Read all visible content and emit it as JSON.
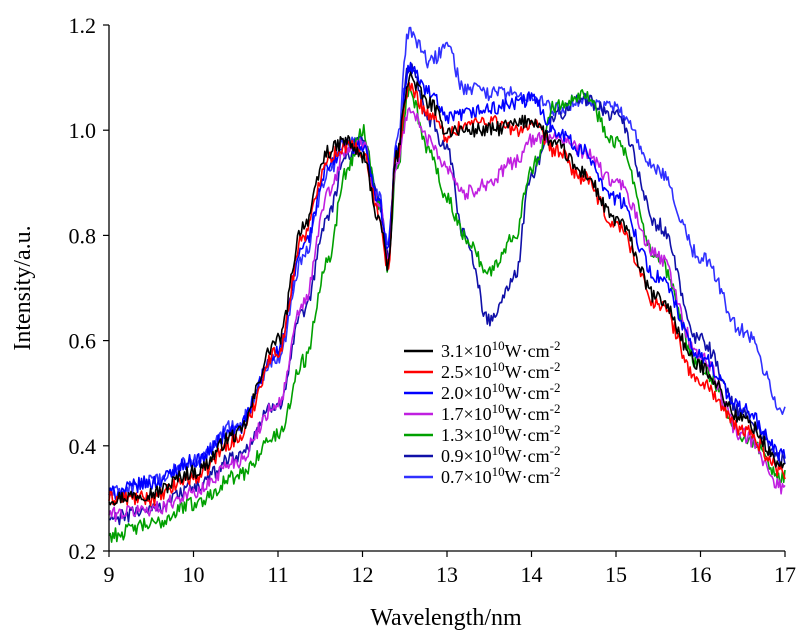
{
  "chart_data": {
    "type": "line",
    "title": "",
    "xlabel": "Wavelength/nm",
    "ylabel": "Intensity/a.u.",
    "xlim": [
      9,
      17
    ],
    "ylim": [
      0.2,
      1.2
    ],
    "x_ticks": [
      "9",
      "10",
      "11",
      "12",
      "13",
      "14",
      "15",
      "16",
      "17"
    ],
    "y_ticks": [
      "0.2",
      "0.4",
      "0.6",
      "0.8",
      "1.0",
      "1.2"
    ],
    "grid": false,
    "legend_position": "lower-center",
    "series": [
      {
        "name": "3.1×10¹⁰W·cm⁻²",
        "mantissa": "3.1",
        "exponent": "10",
        "unit_base": "W·cm",
        "unit_exponent": "-2",
        "color": "#000000",
        "x": [
          9.0,
          9.5,
          10.0,
          10.5,
          11.0,
          11.3,
          11.6,
          11.8,
          12.0,
          12.2,
          12.3,
          12.4,
          12.55,
          12.8,
          13.0,
          13.2,
          13.5,
          13.8,
          14.0,
          14.3,
          14.6,
          15.0,
          15.5,
          16.0,
          16.5,
          17.0
        ],
        "y": [
          0.3,
          0.31,
          0.35,
          0.42,
          0.6,
          0.82,
          0.96,
          0.98,
          0.95,
          0.83,
          0.74,
          0.95,
          1.1,
          1.05,
          1.0,
          1.0,
          1.0,
          1.01,
          1.02,
          0.97,
          0.92,
          0.83,
          0.68,
          0.55,
          0.45,
          0.36
        ]
      },
      {
        "name": "2.5×10¹⁰W·cm⁻²",
        "mantissa": "2.5",
        "exponent": "10",
        "unit_base": "W·cm",
        "unit_exponent": "-2",
        "color": "#ff0000",
        "x": [
          9.0,
          9.5,
          10.0,
          10.5,
          11.0,
          11.3,
          11.6,
          11.8,
          12.0,
          12.2,
          12.3,
          12.4,
          12.55,
          12.8,
          13.0,
          13.2,
          13.5,
          13.8,
          14.0,
          14.3,
          14.6,
          15.0,
          15.5,
          16.0,
          16.5,
          17.0
        ],
        "y": [
          0.3,
          0.3,
          0.34,
          0.41,
          0.58,
          0.8,
          0.95,
          0.97,
          0.96,
          0.84,
          0.74,
          0.95,
          1.08,
          1.03,
          0.99,
          1.01,
          1.02,
          1.0,
          1.01,
          0.96,
          0.91,
          0.82,
          0.67,
          0.52,
          0.43,
          0.35
        ]
      },
      {
        "name": "2.0×10¹⁰W·cm⁻²",
        "mantissa": "2.0",
        "exponent": "10",
        "unit_base": "W·cm",
        "unit_exponent": "-2",
        "color": "#0000ff",
        "x": [
          9.0,
          9.5,
          10.0,
          10.5,
          11.0,
          11.3,
          11.6,
          11.8,
          12.0,
          12.2,
          12.3,
          12.4,
          12.55,
          12.8,
          13.0,
          13.2,
          13.5,
          13.8,
          14.0,
          14.3,
          14.6,
          15.0,
          15.5,
          16.0,
          16.5,
          17.0
        ],
        "y": [
          0.31,
          0.33,
          0.37,
          0.43,
          0.58,
          0.78,
          0.93,
          0.97,
          0.97,
          0.86,
          0.77,
          0.96,
          1.12,
          1.07,
          1.02,
          1.03,
          1.04,
          1.05,
          1.06,
          1.0,
          0.96,
          0.87,
          0.72,
          0.57,
          0.47,
          0.38
        ]
      },
      {
        "name": "1.7×10¹⁰W·cm⁻²",
        "mantissa": "1.7",
        "exponent": "10",
        "unit_base": "W·cm",
        "unit_exponent": "-2",
        "color": "#c020e0",
        "x": [
          9.0,
          9.5,
          10.0,
          10.5,
          11.0,
          11.3,
          11.6,
          11.8,
          12.0,
          12.2,
          12.3,
          12.4,
          12.55,
          12.8,
          13.0,
          13.2,
          13.5,
          13.8,
          14.0,
          14.3,
          14.6,
          15.0,
          15.5,
          16.0,
          16.5,
          17.0
        ],
        "y": [
          0.27,
          0.28,
          0.31,
          0.37,
          0.48,
          0.67,
          0.88,
          0.96,
          0.97,
          0.86,
          0.76,
          0.93,
          1.04,
          0.98,
          0.93,
          0.88,
          0.9,
          0.94,
          0.98,
          0.99,
          0.96,
          0.9,
          0.76,
          0.57,
          0.42,
          0.32
        ]
      },
      {
        "name": "1.3×10¹⁰W·cm⁻²",
        "mantissa": "1.3",
        "exponent": "10",
        "unit_base": "W·cm",
        "unit_exponent": "-2",
        "color": "#00a000",
        "x": [
          9.0,
          9.5,
          10.0,
          10.5,
          11.0,
          11.3,
          11.6,
          11.8,
          12.0,
          12.2,
          12.3,
          12.4,
          12.55,
          12.8,
          13.0,
          13.2,
          13.5,
          13.8,
          14.0,
          14.3,
          14.6,
          15.0,
          15.5,
          16.0,
          16.5,
          17.0
        ],
        "y": [
          0.23,
          0.25,
          0.29,
          0.34,
          0.42,
          0.56,
          0.76,
          0.92,
          1.0,
          0.86,
          0.74,
          0.92,
          1.07,
          0.96,
          0.87,
          0.8,
          0.73,
          0.8,
          0.93,
          1.05,
          1.07,
          0.98,
          0.75,
          0.55,
          0.42,
          0.34
        ]
      },
      {
        "name": "0.9×10¹⁰W·cm⁻²",
        "mantissa": "0.9",
        "exponent": "10",
        "unit_base": "W·cm",
        "unit_exponent": "-2",
        "color": "#1010a8",
        "x": [
          9.0,
          9.5,
          10.0,
          10.5,
          11.0,
          11.3,
          11.6,
          11.8,
          12.0,
          12.2,
          12.3,
          12.4,
          12.55,
          12.8,
          13.0,
          13.2,
          13.5,
          13.8,
          14.0,
          14.3,
          14.6,
          15.0,
          15.5,
          16.0,
          16.5,
          17.0
        ],
        "y": [
          0.26,
          0.28,
          0.32,
          0.38,
          0.48,
          0.65,
          0.84,
          0.95,
          0.99,
          0.86,
          0.76,
          0.94,
          1.12,
          1.02,
          0.96,
          0.8,
          0.64,
          0.72,
          0.92,
          1.03,
          1.06,
          1.03,
          0.82,
          0.6,
          0.46,
          0.37
        ]
      },
      {
        "name": "0.7×10¹⁰W·cm⁻²",
        "mantissa": "0.7",
        "exponent": "10",
        "unit_base": "W·cm",
        "unit_exponent": "-2",
        "color": "#3030ff",
        "x": [
          9.0,
          9.5,
          10.0,
          10.5,
          11.0,
          11.3,
          11.6,
          11.8,
          12.0,
          12.2,
          12.3,
          12.4,
          12.55,
          12.8,
          13.0,
          13.2,
          13.5,
          13.8,
          14.0,
          14.3,
          14.6,
          15.0,
          15.5,
          16.0,
          16.5,
          17.0
        ],
        "y": [
          0.31,
          0.33,
          0.37,
          0.44,
          0.57,
          0.76,
          0.92,
          0.98,
          0.98,
          0.87,
          0.78,
          0.97,
          1.19,
          1.13,
          1.16,
          1.08,
          1.07,
          1.07,
          1.06,
          1.04,
          1.06,
          1.04,
          0.92,
          0.76,
          0.62,
          0.47
        ]
      }
    ]
  }
}
